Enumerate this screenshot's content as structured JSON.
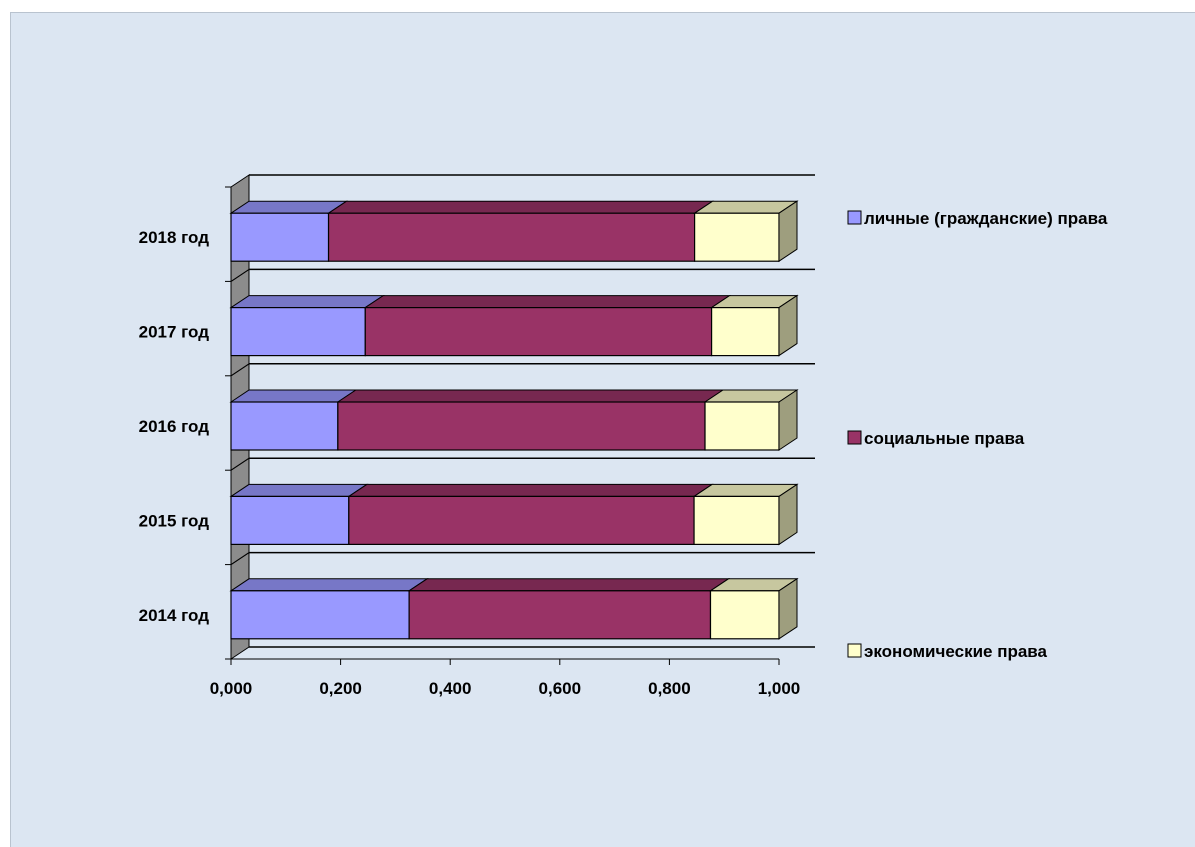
{
  "chart_data": {
    "type": "bar",
    "orientation": "horizontal",
    "stacked": "100%",
    "three_d": true,
    "categories": [
      "2014 год",
      "2015 год",
      "2016 год",
      "2017 год",
      "2018 год"
    ],
    "series": [
      {
        "name": "личные (гражданские) права",
        "values": [
          0.325,
          0.215,
          0.195,
          0.245,
          0.178
        ],
        "color": "#9999ff"
      },
      {
        "name": "социальные права",
        "values": [
          0.55,
          0.63,
          0.67,
          0.632,
          0.668
        ],
        "color": "#993366"
      },
      {
        "name": "экономические права",
        "values": [
          0.125,
          0.155,
          0.135,
          0.123,
          0.154
        ],
        "color": "#ffffcc"
      }
    ],
    "x_ticks": [
      "0,000",
      "0,200",
      "0,400",
      "0,600",
      "0,800",
      "1,000"
    ],
    "xlim": [
      0,
      1
    ],
    "grid": true,
    "legend_position": "right",
    "title": "",
    "xlabel": "",
    "ylabel": ""
  }
}
